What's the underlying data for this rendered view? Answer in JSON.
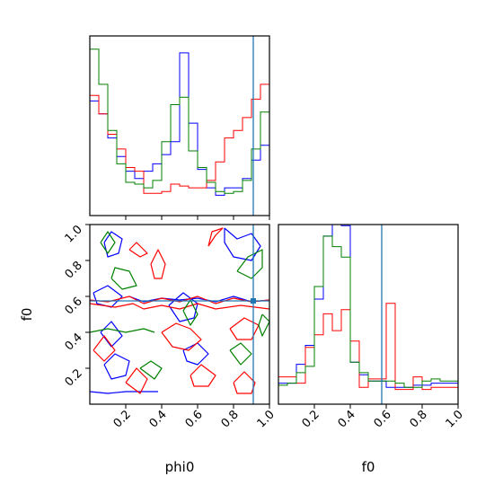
{
  "chart_data": {
    "type": "corner",
    "parameters": [
      "phi0",
      "f0"
    ],
    "truths": {
      "phi0": 0.91,
      "f0": 0.575
    },
    "truth_color": "#1f77b4",
    "series": [
      {
        "color": "#0000ff"
      },
      {
        "color": "#ff0000"
      },
      {
        "color": "#008000"
      }
    ],
    "hist_phi0": {
      "range": [
        0,
        1
      ],
      "bins": 20,
      "series_values": [
        [
          0.62,
          0.55,
          0.42,
          0.32,
          0.24,
          0.2,
          0.24,
          0.28,
          0.33,
          0.4,
          0.88,
          0.5,
          0.25,
          0.15,
          0.11,
          0.15,
          0.15,
          0.2,
          0.3,
          0.38
        ],
        [
          0.65,
          0.55,
          0.44,
          0.36,
          0.26,
          0.24,
          0.12,
          0.12,
          0.13,
          0.17,
          0.16,
          0.15,
          0.15,
          0.19,
          0.29,
          0.42,
          0.46,
          0.53,
          0.63,
          0.71
        ],
        [
          0.9,
          0.71,
          0.46,
          0.28,
          0.18,
          0.17,
          0.15,
          0.19,
          0.4,
          0.6,
          0.64,
          0.35,
          0.26,
          0.18,
          0.13,
          0.12,
          0.13,
          0.19,
          0.36,
          0.56
        ]
      ]
    },
    "hist_f0": {
      "range": [
        0,
        1
      ],
      "bins": 20,
      "series_values": [
        [
          0.1,
          0.1,
          0.19,
          0.28,
          0.5,
          0.8,
          0.9,
          0.85,
          0.2,
          0.14,
          0.11,
          0.11,
          0.08,
          0.08,
          0.08,
          0.09,
          0.09,
          0.1,
          0.1,
          0.1
        ],
        [
          0.13,
          0.13,
          0.1,
          0.27,
          0.33,
          0.43,
          0.35,
          0.45,
          0.3,
          0.08,
          0.12,
          0.12,
          0.48,
          0.07,
          0.07,
          0.13,
          0.07,
          0.08,
          0.08,
          0.08
        ],
        [
          0.09,
          0.1,
          0.15,
          0.18,
          0.56,
          0.8,
          0.75,
          0.7,
          0.2,
          0.15,
          0.11,
          0.11,
          0.11,
          0.1,
          0.08,
          0.08,
          0.11,
          0.12,
          0.11,
          0.11
        ]
      ]
    },
    "contour_2d": {
      "x_param": "phi0",
      "y_param": "f0",
      "xlim": [
        0,
        1
      ],
      "ylim": [
        0,
        1
      ],
      "contours": [
        {
          "series": 0,
          "points": [
            [
              0.08,
              0.9
            ],
            [
              0.12,
              0.96
            ],
            [
              0.18,
              0.92
            ],
            [
              0.16,
              0.84
            ],
            [
              0.1,
              0.82
            ],
            [
              0.08,
              0.9
            ]
          ]
        },
        {
          "series": 0,
          "points": [
            [
              0.02,
              0.62
            ],
            [
              0.1,
              0.66
            ],
            [
              0.18,
              0.6
            ],
            [
              0.12,
              0.54
            ],
            [
              0.04,
              0.56
            ],
            [
              0.02,
              0.62
            ]
          ]
        },
        {
          "series": 0,
          "points": [
            [
              0.08,
              0.22
            ],
            [
              0.14,
              0.28
            ],
            [
              0.22,
              0.24
            ],
            [
              0.2,
              0.16
            ],
            [
              0.12,
              0.14
            ],
            [
              0.08,
              0.22
            ]
          ]
        },
        {
          "series": 0,
          "points": [
            [
              0.44,
              0.55
            ],
            [
              0.52,
              0.62
            ],
            [
              0.6,
              0.56
            ],
            [
              0.58,
              0.48
            ],
            [
              0.5,
              0.46
            ],
            [
              0.44,
              0.55
            ]
          ]
        },
        {
          "series": 0,
          "points": [
            [
              0.75,
              0.98
            ],
            [
              0.82,
              0.92
            ],
            [
              0.9,
              0.95
            ],
            [
              0.95,
              0.88
            ],
            [
              0.9,
              0.8
            ],
            [
              0.8,
              0.82
            ],
            [
              0.75,
              0.9
            ],
            [
              0.75,
              0.98
            ]
          ]
        },
        {
          "series": 0,
          "points": [
            [
              0.0,
              0.07
            ],
            [
              0.1,
              0.06
            ],
            [
              0.2,
              0.07
            ],
            [
              0.38,
              0.07
            ]
          ]
        },
        {
          "series": 0,
          "points": [
            [
              0.52,
              0.3
            ],
            [
              0.6,
              0.34
            ],
            [
              0.66,
              0.28
            ],
            [
              0.6,
              0.22
            ],
            [
              0.54,
              0.24
            ],
            [
              0.52,
              0.3
            ]
          ]
        },
        {
          "series": 0,
          "points": [
            [
              0.22,
              0.6
            ],
            [
              0.3,
              0.57
            ],
            [
              0.4,
              0.59
            ],
            [
              0.5,
              0.58
            ],
            [
              0.6,
              0.59
            ],
            [
              0.7,
              0.57
            ],
            [
              0.8,
              0.6
            ],
            [
              0.9,
              0.57
            ],
            [
              1.0,
              0.58
            ]
          ]
        },
        {
          "series": 0,
          "points": [
            [
              0.06,
              0.4
            ],
            [
              0.12,
              0.46
            ],
            [
              0.18,
              0.38
            ],
            [
              0.12,
              0.32
            ],
            [
              0.06,
              0.4
            ]
          ]
        },
        {
          "series": 1,
          "points": [
            [
              0.66,
              0.88
            ],
            [
              0.7,
              0.94
            ],
            [
              0.74,
              0.98
            ],
            [
              0.68,
              0.96
            ],
            [
              0.66,
              0.88
            ]
          ]
        },
        {
          "series": 1,
          "points": [
            [
              0.22,
              0.86
            ],
            [
              0.28,
              0.82
            ],
            [
              0.32,
              0.84
            ],
            [
              0.26,
              0.9
            ],
            [
              0.22,
              0.86
            ]
          ]
        },
        {
          "series": 1,
          "points": [
            [
              0.34,
              0.78
            ],
            [
              0.38,
              0.86
            ],
            [
              0.42,
              0.78
            ],
            [
              0.4,
              0.7
            ],
            [
              0.36,
              0.7
            ],
            [
              0.34,
              0.78
            ]
          ]
        },
        {
          "series": 1,
          "points": [
            [
              0.0,
              0.58
            ],
            [
              0.1,
              0.57
            ],
            [
              0.22,
              0.6
            ],
            [
              0.3,
              0.56
            ],
            [
              0.4,
              0.59
            ],
            [
              0.5,
              0.57
            ],
            [
              0.6,
              0.6
            ],
            [
              0.7,
              0.56
            ],
            [
              0.8,
              0.59
            ],
            [
              0.9,
              0.57
            ],
            [
              1.0,
              0.58
            ]
          ]
        },
        {
          "series": 1,
          "points": [
            [
              0.0,
              0.56
            ],
            [
              0.14,
              0.54
            ],
            [
              0.24,
              0.56
            ],
            [
              0.3,
              0.53
            ],
            [
              0.4,
              0.55
            ],
            [
              0.5,
              0.53
            ],
            [
              0.6,
              0.56
            ],
            [
              0.7,
              0.53
            ],
            [
              0.84,
              0.55
            ],
            [
              1.0,
              0.53
            ]
          ]
        },
        {
          "series": 1,
          "points": [
            [
              0.4,
              0.4
            ],
            [
              0.48,
              0.45
            ],
            [
              0.56,
              0.42
            ],
            [
              0.62,
              0.36
            ],
            [
              0.55,
              0.3
            ],
            [
              0.46,
              0.32
            ],
            [
              0.4,
              0.4
            ]
          ]
        },
        {
          "series": 1,
          "points": [
            [
              0.56,
              0.16
            ],
            [
              0.62,
              0.22
            ],
            [
              0.7,
              0.16
            ],
            [
              0.66,
              0.1
            ],
            [
              0.58,
              0.1
            ],
            [
              0.56,
              0.16
            ]
          ]
        },
        {
          "series": 1,
          "points": [
            [
              0.2,
              0.12
            ],
            [
              0.26,
              0.2
            ],
            [
              0.32,
              0.14
            ],
            [
              0.28,
              0.06
            ],
            [
              0.2,
              0.12
            ]
          ]
        },
        {
          "series": 1,
          "points": [
            [
              0.78,
              0.42
            ],
            [
              0.86,
              0.48
            ],
            [
              0.94,
              0.44
            ],
            [
              0.9,
              0.36
            ],
            [
              0.82,
              0.36
            ],
            [
              0.78,
              0.42
            ]
          ]
        },
        {
          "series": 1,
          "points": [
            [
              0.02,
              0.3
            ],
            [
              0.08,
              0.38
            ],
            [
              0.14,
              0.3
            ],
            [
              0.08,
              0.24
            ],
            [
              0.02,
              0.3
            ]
          ]
        },
        {
          "series": 1,
          "points": [
            [
              0.8,
              0.12
            ],
            [
              0.86,
              0.18
            ],
            [
              0.92,
              0.12
            ],
            [
              0.9,
              0.06
            ],
            [
              0.82,
              0.06
            ],
            [
              0.8,
              0.12
            ]
          ]
        },
        {
          "series": 2,
          "points": [
            [
              0.12,
              0.7
            ],
            [
              0.18,
              0.64
            ],
            [
              0.26,
              0.66
            ],
            [
              0.22,
              0.74
            ],
            [
              0.14,
              0.76
            ],
            [
              0.12,
              0.7
            ]
          ]
        },
        {
          "series": 2,
          "points": [
            [
              0.0,
              0.4
            ],
            [
              0.1,
              0.42
            ],
            [
              0.2,
              0.4
            ],
            [
              0.3,
              0.42
            ],
            [
              0.36,
              0.4
            ]
          ]
        },
        {
          "series": 2,
          "points": [
            [
              0.52,
              0.52
            ],
            [
              0.56,
              0.58
            ],
            [
              0.6,
              0.5
            ],
            [
              0.56,
              0.44
            ],
            [
              0.52,
              0.52
            ]
          ]
        },
        {
          "series": 2,
          "points": [
            [
              0.82,
              0.74
            ],
            [
              0.88,
              0.82
            ],
            [
              0.96,
              0.86
            ],
            [
              0.96,
              0.76
            ],
            [
              0.9,
              0.7
            ],
            [
              0.82,
              0.74
            ]
          ]
        },
        {
          "series": 2,
          "points": [
            [
              0.78,
              0.3
            ],
            [
              0.84,
              0.34
            ],
            [
              0.9,
              0.28
            ],
            [
              0.84,
              0.22
            ],
            [
              0.78,
              0.3
            ]
          ]
        },
        {
          "series": 2,
          "points": [
            [
              0.28,
              0.2
            ],
            [
              0.34,
              0.24
            ],
            [
              0.4,
              0.2
            ],
            [
              0.36,
              0.14
            ],
            [
              0.28,
              0.2
            ]
          ]
        },
        {
          "series": 2,
          "points": [
            [
              0.06,
              0.9
            ],
            [
              0.1,
              0.96
            ],
            [
              0.14,
              0.9
            ],
            [
              0.1,
              0.84
            ],
            [
              0.06,
              0.9
            ]
          ]
        },
        {
          "series": 2,
          "points": [
            [
              0.96,
              0.5
            ],
            [
              1.0,
              0.46
            ],
            [
              0.96,
              0.38
            ],
            [
              0.94,
              0.44
            ],
            [
              0.96,
              0.5
            ]
          ]
        }
      ]
    },
    "xlabel_phi0": "phi0",
    "xlabel_f0": "f0",
    "ylabel_f0": "f0",
    "xticks": [
      "0.2",
      "0.4",
      "0.6",
      "0.8",
      "1.0"
    ],
    "yticks": [
      "0.2",
      "0.4",
      "0.6",
      "0.8",
      "1.0"
    ],
    "grid": false
  }
}
